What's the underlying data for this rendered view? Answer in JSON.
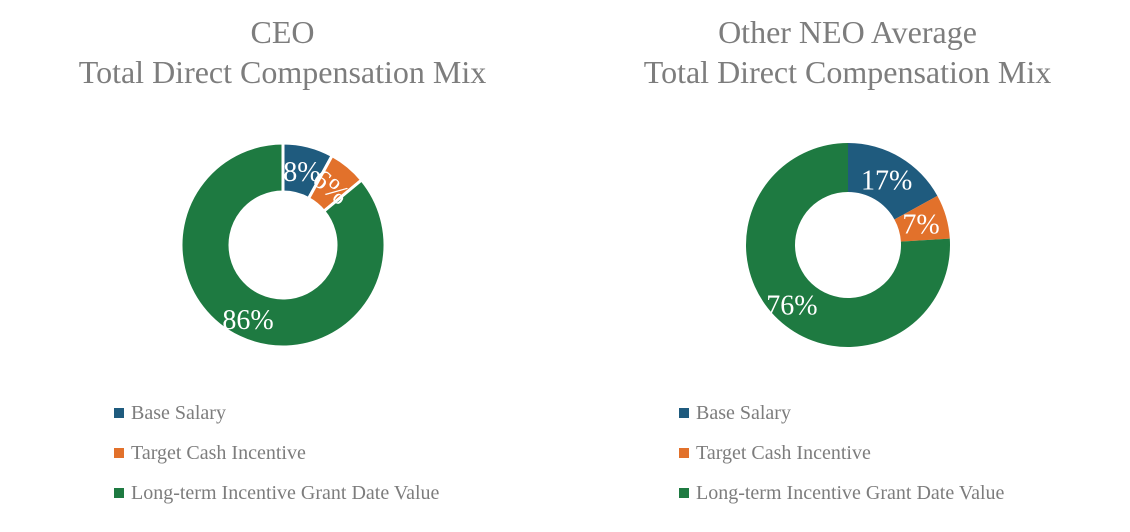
{
  "figure": {
    "background": "#ffffff",
    "title_color": "#7d7d7d",
    "legend_text_color": "#7d7d7d",
    "slice_label_color": "#ffffff"
  },
  "chart_data": [
    {
      "type": "pie",
      "subtype": "donut",
      "title_lines": [
        "CEO",
        "Total Direct Compensation Mix"
      ],
      "categories": [
        "Base Salary",
        "Target Cash Incentive",
        "Long-term Incentive Grant Date Value"
      ],
      "values": [
        8,
        6,
        86
      ],
      "slice_labels": [
        "8%",
        "6%",
        "86%"
      ],
      "colors": [
        "#1f5b7e",
        "#e2712b",
        "#1e7a41"
      ],
      "start_angle_deg": 0,
      "clockwise": true,
      "donut_hole_ratio": 0.52,
      "slice_borders": true,
      "slice_border_color": "#ffffff",
      "label_rotations_deg": [
        0,
        40,
        0
      ],
      "legend_position": "bottom-left"
    },
    {
      "type": "pie",
      "subtype": "donut",
      "title_lines": [
        "Other NEO Average",
        "Total Direct Compensation Mix"
      ],
      "categories": [
        "Base Salary",
        "Target Cash Incentive",
        "Long-term Incentive Grant Date Value"
      ],
      "values": [
        17,
        7,
        76
      ],
      "slice_labels": [
        "17%",
        "7%",
        "76%"
      ],
      "colors": [
        "#1f5b7e",
        "#e2712b",
        "#1e7a41"
      ],
      "start_angle_deg": 0,
      "clockwise": true,
      "donut_hole_ratio": 0.52,
      "slice_borders": false,
      "slice_border_color": "#ffffff",
      "label_rotations_deg": [
        0,
        0,
        0
      ],
      "legend_position": "bottom-left"
    }
  ]
}
